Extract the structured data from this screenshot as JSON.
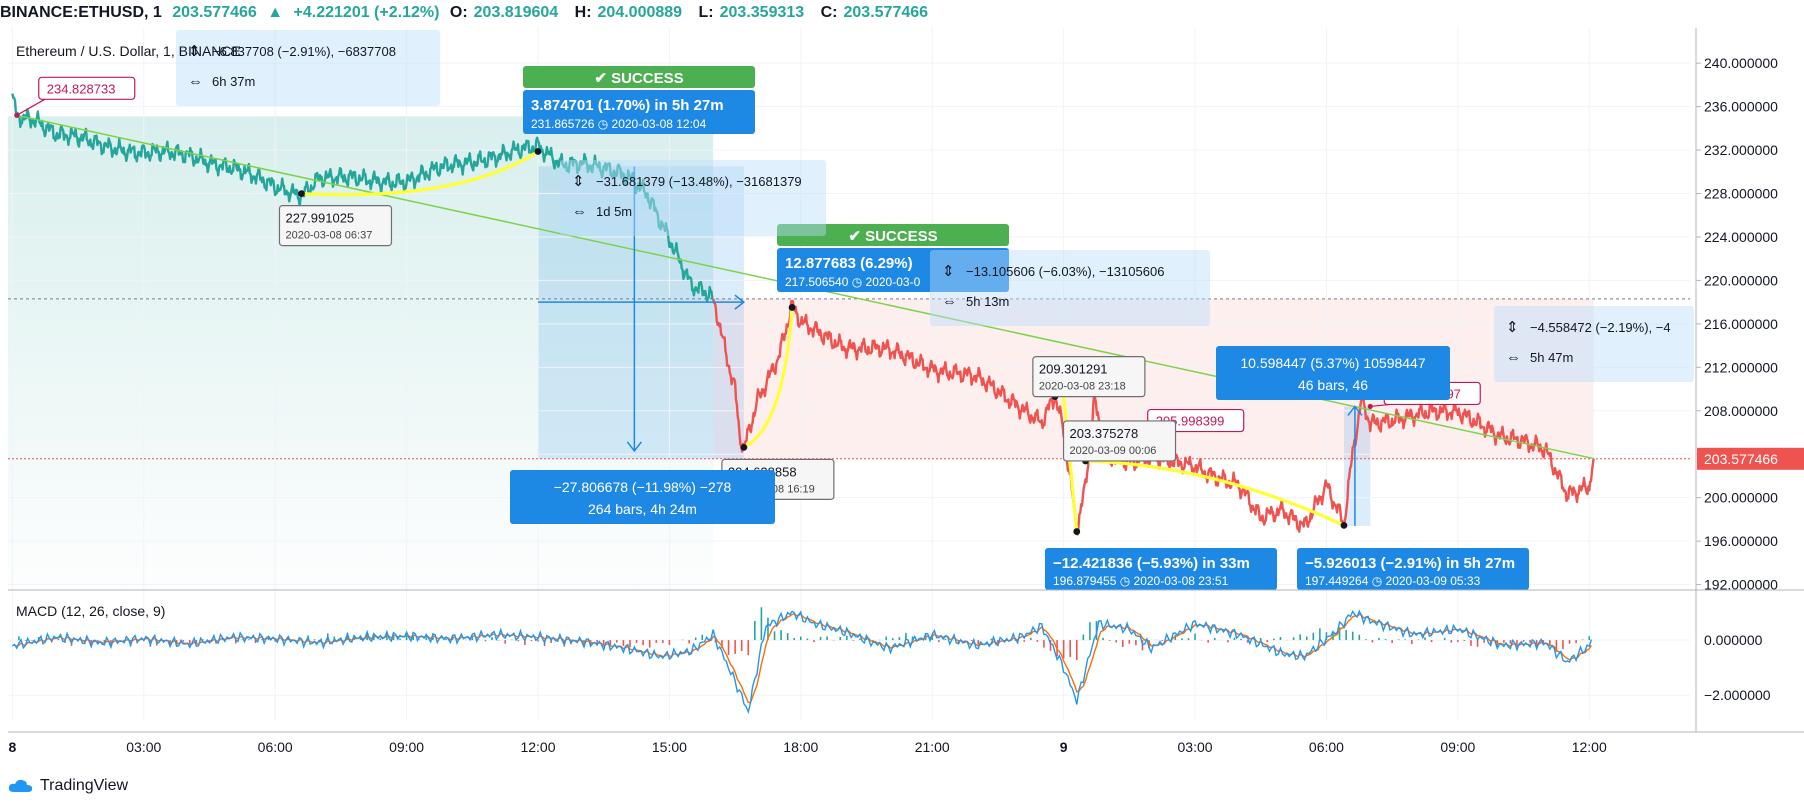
{
  "header": {
    "symbol": "BINANCE:ETHUSD, 1",
    "last": "203.577466",
    "arrow": "▲",
    "change": "+4.221201 (+2.12%)",
    "open_label": "O:",
    "open": "203.819604",
    "high_label": "H:",
    "high": "204.000889",
    "low_label": "L:",
    "low": "203.359313",
    "close_label": "C:",
    "close": "203.577466"
  },
  "legend": {
    "main": "Ethereum / U.S. Dollar, 1, BINANCE",
    "macd": "MACD (12, 26, close, 9)"
  },
  "branding": {
    "name": "TradingView"
  },
  "colors": {
    "up": "#26a69a",
    "down": "#ef5350",
    "trend": "#7cd34a",
    "curve": "#ffff33",
    "blue": "#1e88e5",
    "pink": "#c2185b",
    "macd": "#2196f3",
    "signal": "#ff6d00"
  },
  "chart_data": [
    {
      "type": "line",
      "title": "Ethereum / U.S. Dollar, 1, BINANCE",
      "x_ticks": [
        "8",
        "03:00",
        "06:00",
        "09:00",
        "12:00",
        "15:00",
        "18:00",
        "21:00",
        "9",
        "03:00",
        "06:00",
        "09:00",
        "12:00"
      ],
      "x_hours": [
        0,
        3,
        6,
        9,
        12,
        15,
        18,
        21,
        24,
        27,
        30,
        33,
        36
      ],
      "y_ticks": [
        "240.000000",
        "236.000000",
        "232.000000",
        "228.000000",
        "224.000000",
        "220.000000",
        "216.000000",
        "212.000000",
        "208.000000",
        "204.000000",
        "200.000000",
        "196.000000",
        "192.000000"
      ],
      "ylim": [
        191.5,
        242.5
      ],
      "xlim": [
        -0.1,
        38.3
      ],
      "last_price_label": "203.577466",
      "series": [
        {
          "color": "#26a69a",
          "points": [
            [
              0,
              237.2
            ],
            [
              0.1,
              235.2
            ],
            [
              0.5,
              235
            ],
            [
              1,
              233.5
            ],
            [
              2,
              232.5
            ],
            [
              3,
              231.8
            ],
            [
              4,
              231.5
            ],
            [
              5,
              230.5
            ],
            [
              6,
              228.5
            ],
            [
              6.6,
              228
            ],
            [
              7,
              229.5
            ],
            [
              8,
              229.2
            ],
            [
              9,
              229.2
            ],
            [
              10,
              230.5
            ],
            [
              11,
              231.5
            ],
            [
              12,
              232.2
            ],
            [
              12.5,
              230.8
            ],
            [
              13,
              231
            ],
            [
              14,
              229.5
            ],
            [
              14.5,
              228
            ],
            [
              15,
              224
            ],
            [
              15.5,
              219.5
            ],
            [
              16,
              218.3
            ]
          ]
        },
        {
          "color": "#ef5350",
          "points": [
            [
              16,
              218.3
            ],
            [
              16.3,
              213
            ],
            [
              16.5,
              210
            ],
            [
              16.6,
              206
            ],
            [
              16.7,
              204.6
            ],
            [
              17,
              209
            ],
            [
              17.5,
              213
            ],
            [
              17.8,
              217.5
            ],
            [
              18,
              216
            ],
            [
              18.5,
              215
            ],
            [
              19,
              214
            ],
            [
              20,
              213.5
            ],
            [
              21,
              212
            ],
            [
              22,
              211
            ],
            [
              23,
              208.5
            ],
            [
              23.5,
              207
            ],
            [
              23.8,
              209.3
            ],
            [
              24,
              206
            ],
            [
              24.2,
              200
            ],
            [
              24.3,
              196.9
            ],
            [
              24.5,
              201
            ],
            [
              24.7,
              209
            ],
            [
              25,
              204
            ],
            [
              25.5,
              203.4
            ],
            [
              26,
              203.5
            ],
            [
              27,
              203
            ],
            [
              28,
              201
            ],
            [
              28.5,
              198
            ],
            [
              29,
              199
            ],
            [
              29.5,
              197.5
            ],
            [
              30,
              201
            ],
            [
              30.4,
              197.4
            ],
            [
              30.6,
              204
            ],
            [
              30.8,
              209
            ],
            [
              31,
              207
            ],
            [
              32,
              207.5
            ],
            [
              33,
              208
            ],
            [
              33.5,
              207
            ],
            [
              34,
              205.5
            ],
            [
              35,
              204.5
            ],
            [
              35.5,
              200.5
            ],
            [
              36,
              201
            ],
            [
              36.1,
              203.6
            ]
          ]
        }
      ],
      "trend_lines": [
        {
          "from": [
            0.1,
            235.2
          ],
          "to": [
            36.1,
            203.6
          ]
        }
      ],
      "curves": [
        {
          "from": [
            6.6,
            227.99
          ],
          "to": [
            12.0,
            231.87
          ]
        },
        {
          "from": [
            16.7,
            204.63
          ],
          "to": [
            17.8,
            217.51
          ]
        },
        {
          "from": [
            24.5,
            203.38
          ],
          "to": [
            30.4,
            197.45
          ]
        },
        {
          "from": [
            24.0,
            209.3
          ],
          "to": [
            24.3,
            196.88
          ]
        }
      ],
      "annotations": {
        "price_labels": [
          {
            "text": "234.828733",
            "at": [
              0.1,
              235.2
            ]
          },
          {
            "text": "205.998399",
            "at": [
              25.6,
              205.9
            ]
          },
          {
            "text": "208.389597",
            "at": [
              31.0,
              208.4
            ]
          }
        ],
        "point_labels": [
          {
            "price": "227.991025",
            "time": "2020-03-08 06:37",
            "at": [
              6.6,
              227.99
            ]
          },
          {
            "price": "204.628858",
            "time": "2020-03-08 16:19",
            "at": [
              16.7,
              204.63
            ]
          },
          {
            "price": "209.301291",
            "time": "2020-03-08 23:18",
            "at": [
              23.8,
              209.3
            ]
          },
          {
            "price": "203.375278",
            "time": "2020-03-09 00:06",
            "at": [
              24.5,
              203.38
            ]
          }
        ],
        "forecasts": [
          {
            "status": "✔ SUCCESS",
            "line1": "3.874701 (1.70%) in 5h 27m",
            "line2": "231.865726 ◷ 2020-03-08  12:04"
          },
          {
            "status": "✔ SUCCESS",
            "line1": "12.877683 (6.29%)",
            "line2": "217.506540 ◷ 2020-03-0"
          }
        ],
        "moves": [
          {
            "line1": "−12.421836 (−5.93%) in 33m",
            "line2": "196.879455 ◷ 2020-03-08  23:51"
          },
          {
            "line1": "−5.926013 (−2.91%) in 5h 27m",
            "line2": "197.449264 ◷ 2020-03-09  05:33"
          }
        ],
        "ranges": [
          {
            "line1": "−27.806678 (−11.98%) −278",
            "line2": "264 bars, 4h 24m"
          },
          {
            "line1": "10.598447 (5.37%) 10598447",
            "line2": "46 bars, 46"
          }
        ],
        "measures": [
          {
            "line1": "−6.837708 (−2.91%), −6837708",
            "line2": "6h 37m"
          },
          {
            "line1": "−31.681379 (−13.48%), −31681379",
            "line2": "1d 5m"
          },
          {
            "line1": "−13.105606 (−6.03%), −13105606",
            "line2": "5h 13m"
          },
          {
            "line1": "−4.558472 (−2.19%), −4",
            "line2": "5h 47m"
          }
        ]
      }
    },
    {
      "type": "line",
      "title": "MACD (12, 26, close, 9)",
      "y_ticks": [
        "0.000000",
        "−2.000000"
      ],
      "ylim": [
        -2.9,
        1.6
      ],
      "series": [
        {
          "name": "MACD",
          "color": "#2196f3"
        },
        {
          "name": "Signal",
          "color": "#ff6d00"
        }
      ],
      "macd_points": [
        [
          0,
          -0.2
        ],
        [
          1,
          0.1
        ],
        [
          2,
          -0.1
        ],
        [
          3,
          0.05
        ],
        [
          4,
          -0.15
        ],
        [
          5,
          0.1
        ],
        [
          6,
          0.05
        ],
        [
          7,
          -0.1
        ],
        [
          8,
          0.1
        ],
        [
          9,
          0.15
        ],
        [
          10,
          0.05
        ],
        [
          11,
          0.2
        ],
        [
          12,
          0.1
        ],
        [
          13,
          -0.05
        ],
        [
          14,
          -0.3
        ],
        [
          14.8,
          -0.6
        ],
        [
          15.5,
          -0.4
        ],
        [
          16,
          0.2
        ],
        [
          16.5,
          -1.5
        ],
        [
          16.8,
          -2.6
        ],
        [
          17.2,
          0.5
        ],
        [
          17.8,
          1.0
        ],
        [
          18.3,
          0.6
        ],
        [
          19,
          0.3
        ],
        [
          20,
          -0.3
        ],
        [
          21,
          0.2
        ],
        [
          22,
          -0.2
        ],
        [
          23,
          0.1
        ],
        [
          23.5,
          0.5
        ],
        [
          24,
          -1.0
        ],
        [
          24.3,
          -2.2
        ],
        [
          24.8,
          0.6
        ],
        [
          25.5,
          0.4
        ],
        [
          26,
          -0.3
        ],
        [
          27,
          0.6
        ],
        [
          28,
          0.2
        ],
        [
          29,
          -0.5
        ],
        [
          29.5,
          -0.6
        ],
        [
          30.2,
          0.3
        ],
        [
          30.6,
          1.0
        ],
        [
          31,
          0.7
        ],
        [
          32,
          0.2
        ],
        [
          33,
          0.4
        ],
        [
          34,
          -0.2
        ],
        [
          35,
          -0.1
        ],
        [
          35.5,
          -0.8
        ],
        [
          36,
          -0.2
        ],
        [
          36.1,
          0.2
        ]
      ]
    }
  ]
}
